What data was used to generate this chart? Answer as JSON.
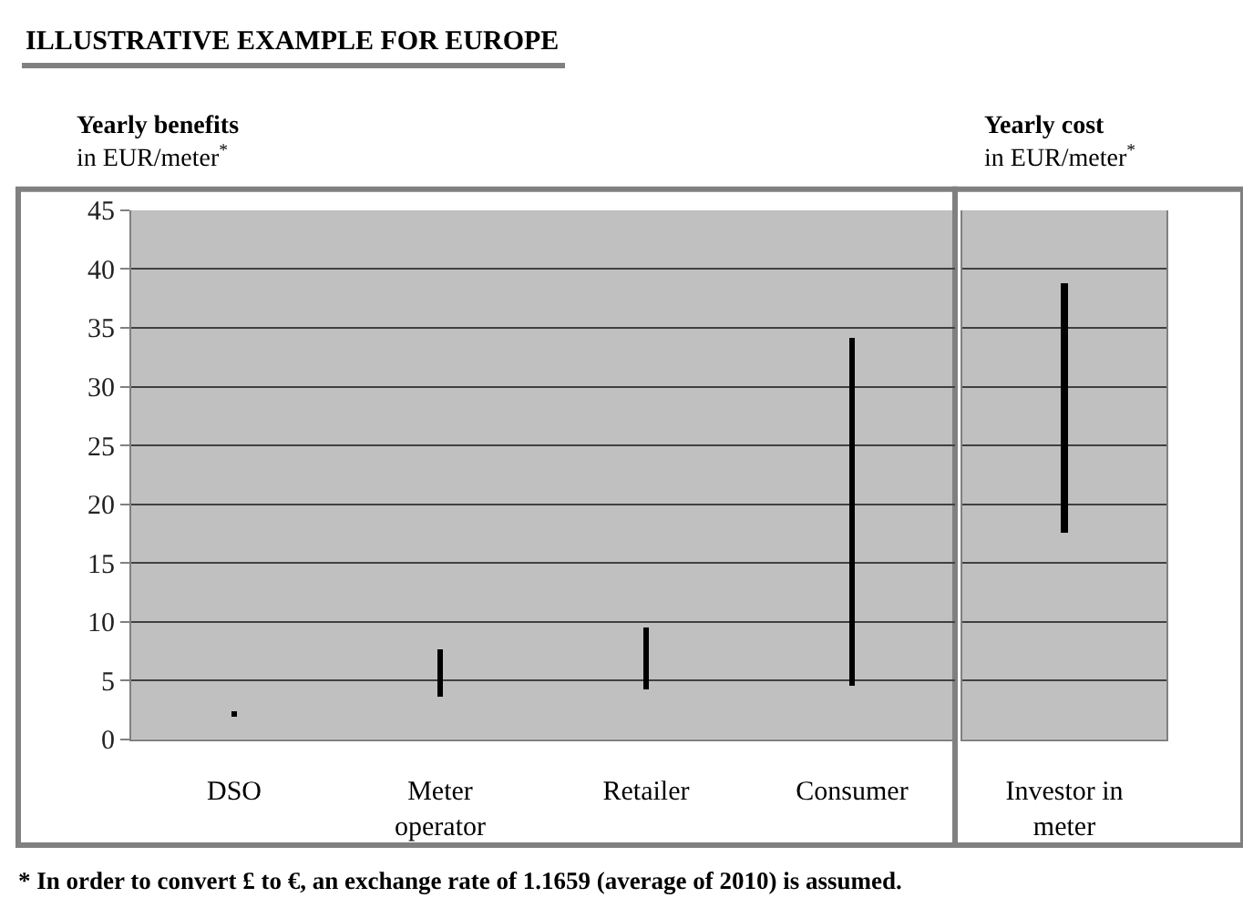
{
  "chart_data": [
    {
      "type": "bar",
      "title": "ILLUSTRATIVE EXAMPLE FOR EUROPE",
      "ylabel": "Yearly benefits\nin EUR/meter$^{*}$",
      "categories": [
        "DSO",
        "Meter\noperator",
        "Retailer",
        "Consumer"
      ],
      "base": [
        2.0,
        3.6,
        4.2,
        4.6
      ],
      "values": [
        0.4,
        4.1,
        5.4,
        29.5
      ],
      "color": "#000000",
      "ylim": [
        0,
        45
      ],
      "yticks": [
        0,
        5,
        10,
        15,
        20,
        25,
        30,
        35,
        40,
        45
      ],
      "grid": "y",
      "annotations": [
        "* In order to convert £ to €, an exchange rate of 1.1659 (average of 2010) is assumed."
      ]
    },
    {
      "type": "bar",
      "ylabel": "Yearly cost\nin EUR/meter$^{*}$",
      "categories": [
        "Investor in\nmeter"
      ],
      "base": [
        17.6
      ],
      "values": [
        21.2
      ],
      "color": "#000000",
      "ylim": [
        0,
        45
      ],
      "yticks": [
        0,
        5,
        10,
        15,
        20,
        25,
        30,
        35,
        40,
        45
      ],
      "grid": "y",
      "tick_labels": "x"
    }
  ]
}
